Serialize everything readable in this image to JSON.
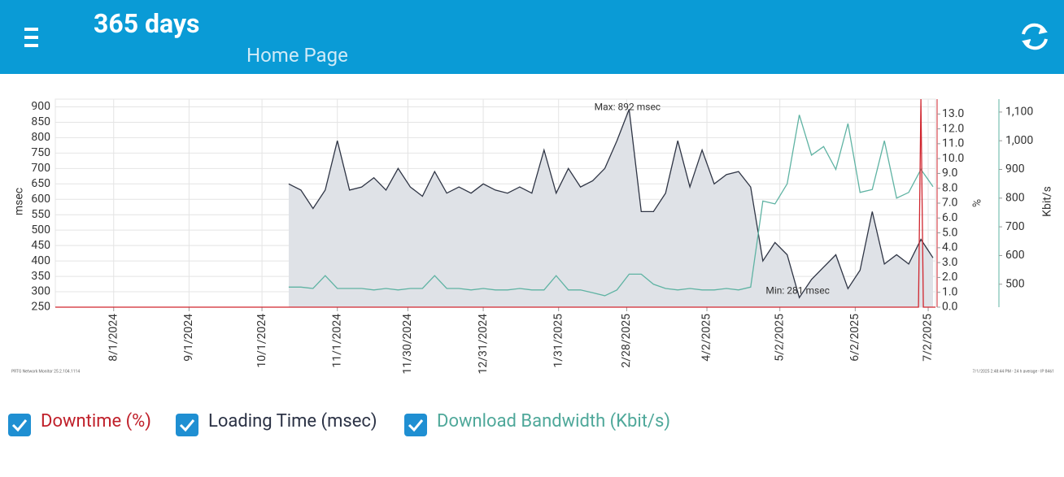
{
  "header": {
    "title": "365 days",
    "subtitle": "Home Page"
  },
  "chart_data": {
    "type": "line",
    "ylabel": "msec",
    "y2label": "%",
    "y3label": "Kbit/s",
    "xlim": [
      "2024-07-08",
      "2025-07-05"
    ],
    "xticks": [
      {
        "value": "2024-08-01",
        "label": "8/1/2024"
      },
      {
        "value": "2024-09-01",
        "label": "9/1/2024"
      },
      {
        "value": "2024-10-01",
        "label": "10/1/2024"
      },
      {
        "value": "2024-11-01",
        "label": "11/1/2024"
      },
      {
        "value": "2024-11-30",
        "label": "11/30/2024"
      },
      {
        "value": "2024-12-31",
        "label": "12/31/2024"
      },
      {
        "value": "2025-01-31",
        "label": "1/31/2025"
      },
      {
        "value": "2025-02-28",
        "label": "2/28/2025"
      },
      {
        "value": "2025-04-02",
        "label": "4/2/2025"
      },
      {
        "value": "2025-05-02",
        "label": "5/2/2025"
      },
      {
        "value": "2025-06-02",
        "label": "6/2/2025"
      },
      {
        "value": "2025-07-02",
        "label": "7/2/2025"
      }
    ],
    "ylim": [
      250,
      925
    ],
    "yticks": [
      250,
      300,
      350,
      400,
      450,
      500,
      550,
      600,
      650,
      700,
      750,
      800,
      850,
      900
    ],
    "y2lim": [
      0,
      14
    ],
    "y2ticks": [
      {
        "value": 0,
        "label": "0.0"
      },
      {
        "value": 1,
        "label": "1.0"
      },
      {
        "value": 2,
        "label": "2.0"
      },
      {
        "value": 3,
        "label": "3.0"
      },
      {
        "value": 4,
        "label": "4.0"
      },
      {
        "value": 5,
        "label": "5.0"
      },
      {
        "value": 6,
        "label": "6.0"
      },
      {
        "value": 7,
        "label": "7.0"
      },
      {
        "value": 8,
        "label": "8.0"
      },
      {
        "value": 9,
        "label": "9.0"
      },
      {
        "value": 10,
        "label": "10.0"
      },
      {
        "value": 11,
        "label": "11.0"
      },
      {
        "value": 12,
        "label": "12.0"
      },
      {
        "value": 13,
        "label": "13.0"
      }
    ],
    "y3lim": [
      420,
      1145
    ],
    "y3ticks": [
      500,
      600,
      700,
      800,
      900,
      {
        "value": 1000,
        "label": "1,000"
      },
      {
        "value": 1100,
        "label": "1,100"
      }
    ],
    "grid": true,
    "annotations": [
      "Max: 892 msec",
      "Min: 281 msec"
    ],
    "footnotes": [
      "PRTG Network Monitor 25.2.104.1114",
      "7/1/2025 2:48:44 PM - 24 h average - IP 8461"
    ],
    "series": [
      {
        "name": "Downtime (%)",
        "color": "#d0262f",
        "axis": "y2",
        "x": [
          "2024-07-08",
          "2025-06-28",
          "2025-06-29",
          "2025-06-30",
          "2025-07-05"
        ],
        "values": [
          0,
          0,
          14,
          0,
          0
        ]
      },
      {
        "name": "Loading Time (msec)",
        "color": "#2f3545",
        "axis": "y",
        "fill": "#dfe2e7",
        "x": [
          "2024-10-12",
          "2024-10-17",
          "2024-10-22",
          "2024-10-27",
          "2024-11-01",
          "2024-11-06",
          "2024-11-11",
          "2024-11-16",
          "2024-11-21",
          "2024-11-26",
          "2024-12-01",
          "2024-12-06",
          "2024-12-11",
          "2024-12-16",
          "2024-12-21",
          "2024-12-26",
          "2024-12-31",
          "2025-01-05",
          "2025-01-10",
          "2025-01-15",
          "2025-01-20",
          "2025-01-25",
          "2025-01-30",
          "2025-02-04",
          "2025-02-09",
          "2025-02-14",
          "2025-02-19",
          "2025-02-24",
          "2025-03-01",
          "2025-03-06",
          "2025-03-11",
          "2025-03-16",
          "2025-03-21",
          "2025-03-26",
          "2025-03-31",
          "2025-04-05",
          "2025-04-10",
          "2025-04-15",
          "2025-04-20",
          "2025-04-25",
          "2025-04-30",
          "2025-05-05",
          "2025-05-10",
          "2025-05-15",
          "2025-05-20",
          "2025-05-25",
          "2025-05-30",
          "2025-06-04",
          "2025-06-09",
          "2025-06-14",
          "2025-06-19",
          "2025-06-24",
          "2025-06-29",
          "2025-07-04"
        ],
        "values": [
          650,
          630,
          570,
          630,
          790,
          630,
          640,
          670,
          630,
          700,
          640,
          610,
          690,
          620,
          640,
          620,
          650,
          630,
          620,
          640,
          620,
          760,
          620,
          700,
          640,
          660,
          700,
          790,
          892,
          560,
          560,
          620,
          790,
          640,
          760,
          650,
          680,
          690,
          640,
          400,
          460,
          420,
          281,
          340,
          380,
          420,
          310,
          370,
          560,
          390,
          420,
          390,
          470,
          410
        ]
      },
      {
        "name": "Download Bandwidth (Kbit/s)",
        "color": "#5fb3a3",
        "axis": "y3",
        "x": [
          "2024-10-12",
          "2024-10-17",
          "2024-10-22",
          "2024-10-27",
          "2024-11-01",
          "2024-11-06",
          "2024-11-11",
          "2024-11-16",
          "2024-11-21",
          "2024-11-26",
          "2024-12-01",
          "2024-12-06",
          "2024-12-11",
          "2024-12-16",
          "2024-12-21",
          "2024-12-26",
          "2024-12-31",
          "2025-01-05",
          "2025-01-10",
          "2025-01-15",
          "2025-01-20",
          "2025-01-25",
          "2025-01-30",
          "2025-02-04",
          "2025-02-09",
          "2025-02-14",
          "2025-02-19",
          "2025-02-24",
          "2025-03-01",
          "2025-03-06",
          "2025-03-11",
          "2025-03-16",
          "2025-03-21",
          "2025-03-26",
          "2025-03-31",
          "2025-04-05",
          "2025-04-10",
          "2025-04-15",
          "2025-04-20",
          "2025-04-25",
          "2025-04-30",
          "2025-05-05",
          "2025-05-10",
          "2025-05-15",
          "2025-05-20",
          "2025-05-25",
          "2025-05-30",
          "2025-06-04",
          "2025-06-09",
          "2025-06-14",
          "2025-06-19",
          "2025-06-24",
          "2025-06-29",
          "2025-07-04"
        ],
        "values": [
          490,
          490,
          485,
          530,
          485,
          485,
          485,
          480,
          485,
          480,
          485,
          485,
          530,
          485,
          485,
          480,
          485,
          480,
          480,
          485,
          480,
          480,
          530,
          480,
          480,
          470,
          460,
          480,
          535,
          535,
          500,
          485,
          480,
          485,
          480,
          480,
          485,
          480,
          490,
          790,
          780,
          850,
          1090,
          950,
          980,
          900,
          1060,
          820,
          830,
          1000,
          800,
          820,
          900,
          840
        ]
      }
    ]
  }
}
